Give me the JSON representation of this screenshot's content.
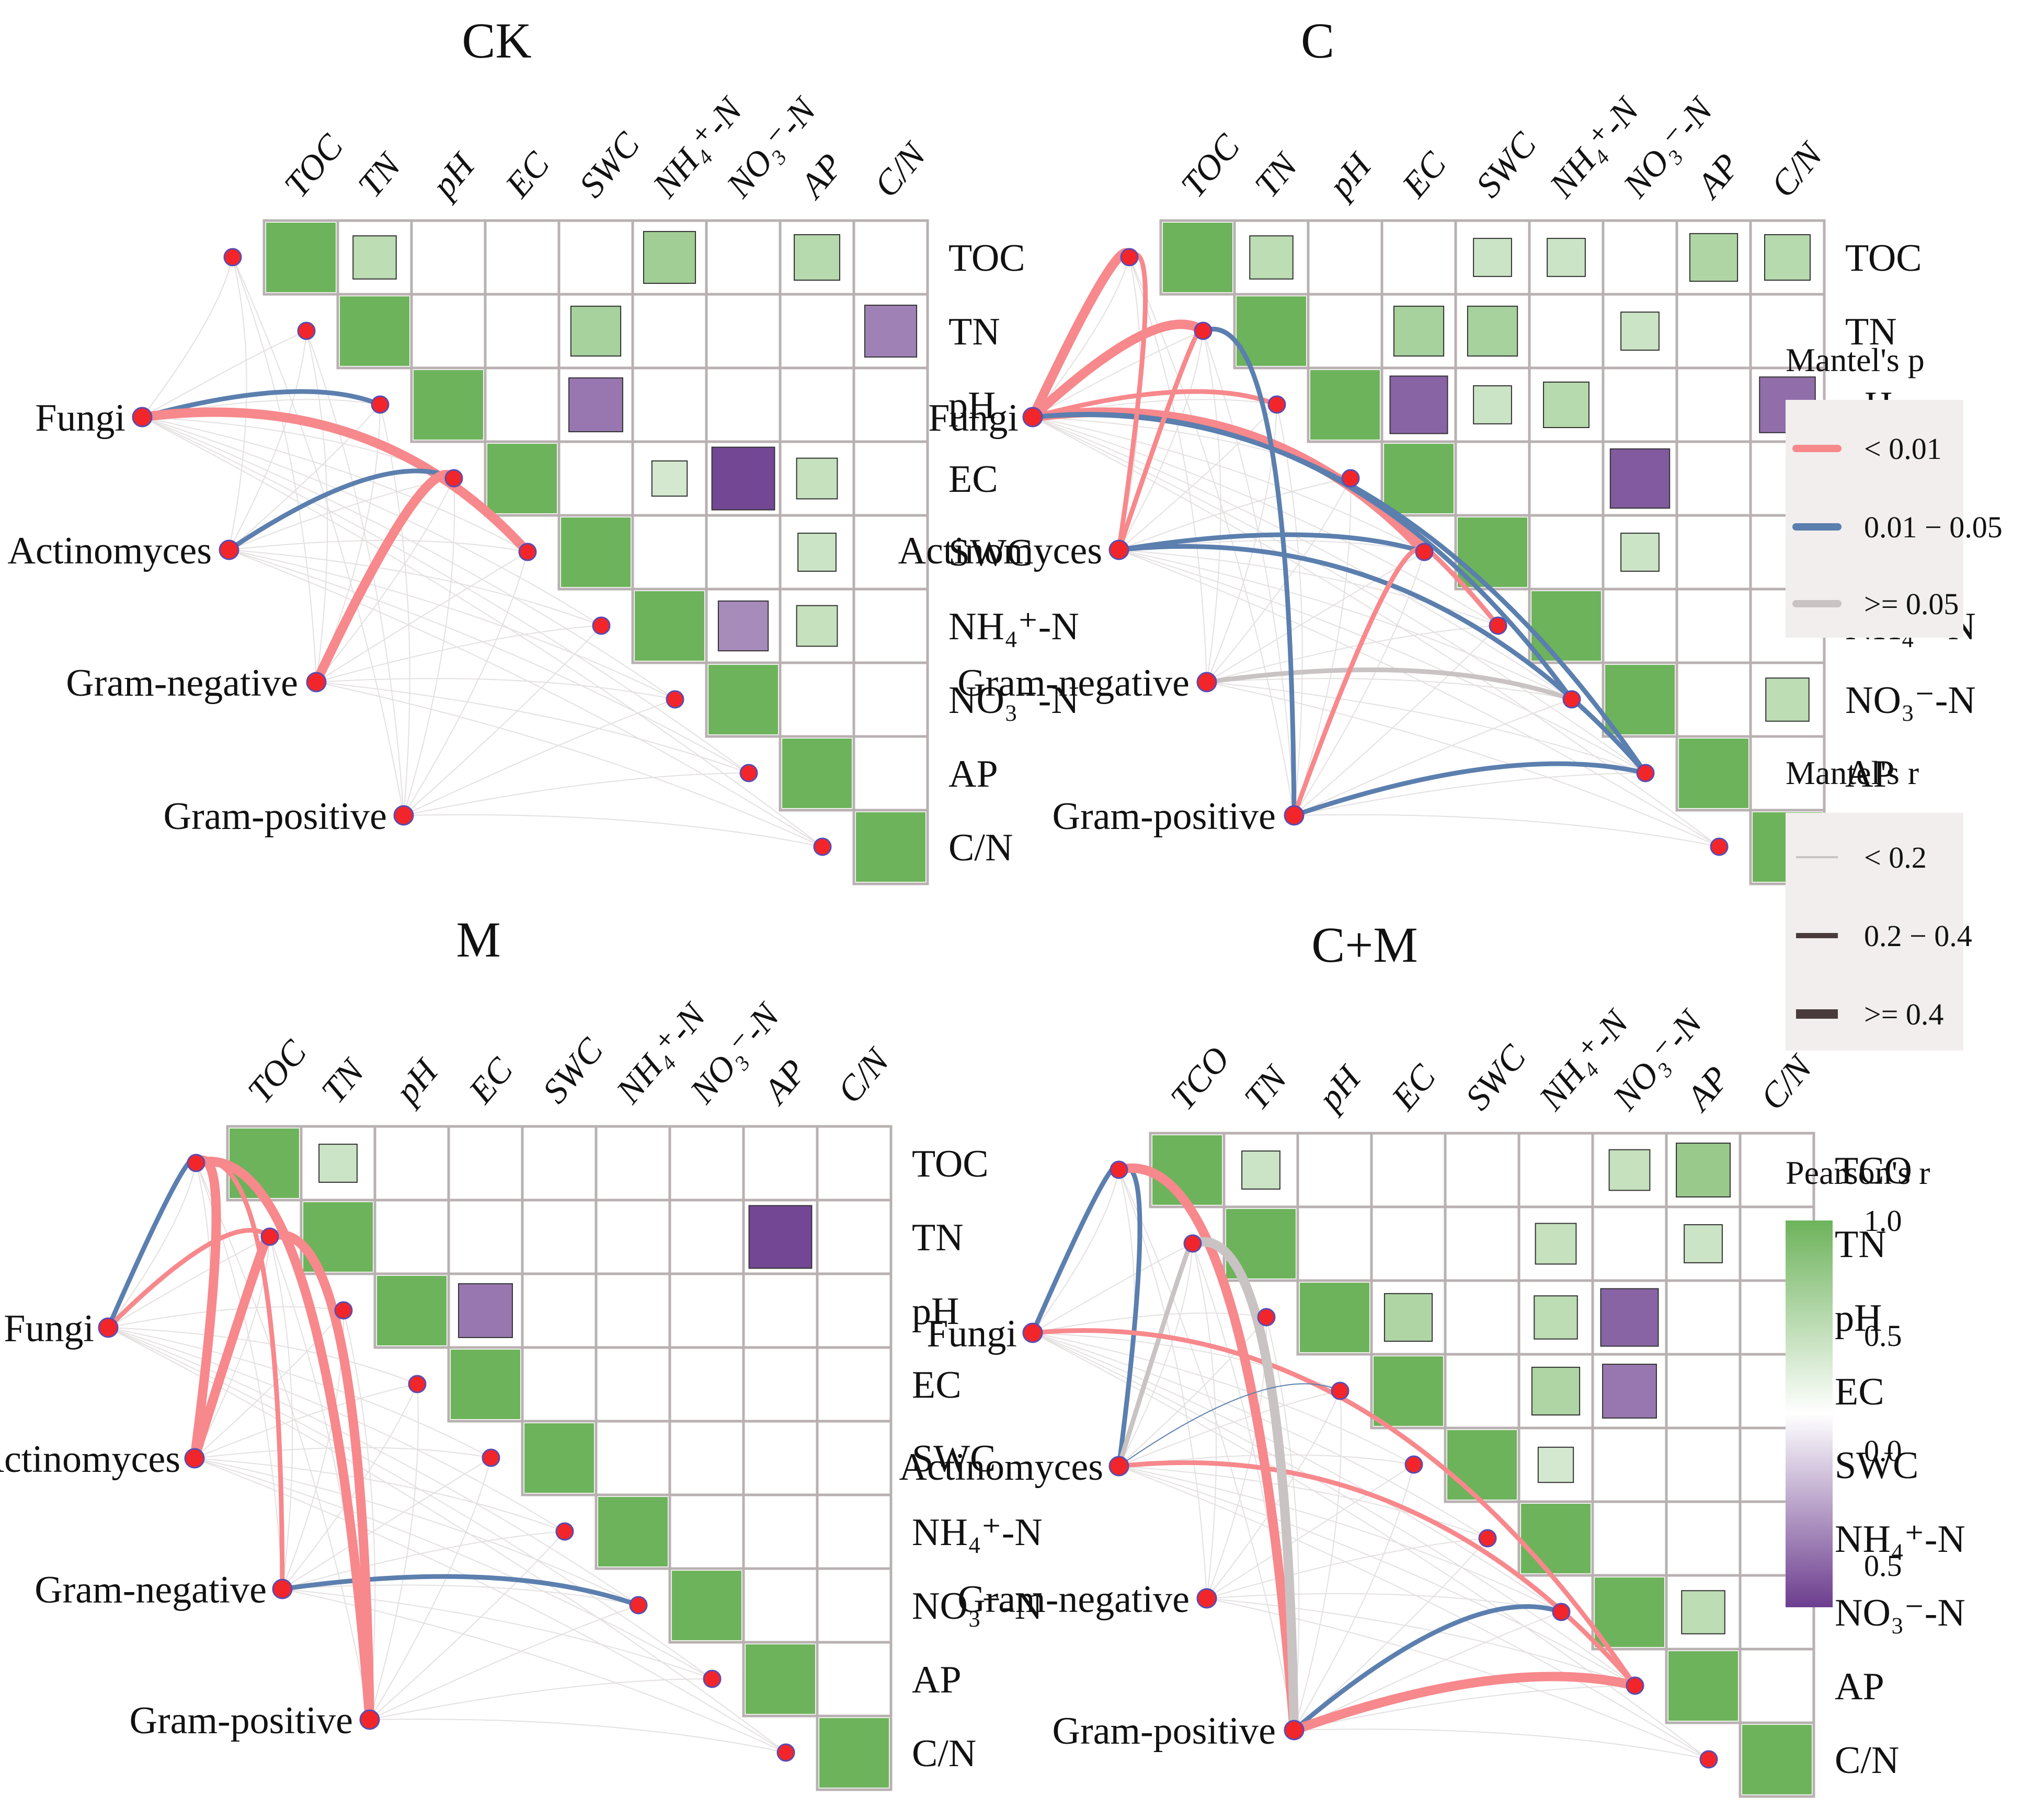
{
  "chart_data": {
    "type": "heatmap",
    "description_free": true,
    "legend": {
      "mantel_p": {
        "title": "Mantel's p",
        "items": [
          {
            "label": "< 0.01",
            "color": "#F7888C"
          },
          {
            "label": "0.01 − 0.05",
            "color": "#5B7FAE"
          },
          {
            "label": ">= 0.05",
            "color": "#C9C3C3"
          }
        ]
      },
      "mantel_r": {
        "title": "Mantel's r",
        "items": [
          {
            "label": "< 0.2",
            "weight": 0.15
          },
          {
            "label": "0.2 − 0.4",
            "weight": 0.5
          },
          {
            "label": ">= 0.4",
            "weight": 0.9
          }
        ]
      },
      "pearson_r": {
        "title": "Pearson's r",
        "ticks": [
          "1.0",
          "0.5",
          "0.0",
          "0.5"
        ],
        "color_high": "#6DB35B",
        "color_mid": "#FFFFFF",
        "color_low": "#6C3D8E"
      }
    },
    "group_labels": [
      "Fungi",
      "Actinomyces",
      "Gram-negative",
      "Gram-positive"
    ],
    "panels": [
      {
        "title": "CK",
        "col_labels": [
          "TOC",
          "TN",
          "pH",
          "EC",
          "SWC",
          "NH₄⁺-N",
          "NO₃⁻-N",
          "AP",
          "C/N"
        ],
        "row_labels": [
          "TOC",
          "TN",
          "pH",
          "EC",
          "SWC",
          "NH₄⁺-N",
          "NO₃⁻-N",
          "AP",
          "C/N"
        ],
        "cells": [
          [
            0,
            1,
            0.45
          ],
          [
            0,
            5,
            0.65
          ],
          [
            0,
            7,
            0.5
          ],
          [
            1,
            4,
            0.6
          ],
          [
            1,
            8,
            -0.65
          ],
          [
            2,
            4,
            -0.7
          ],
          [
            3,
            5,
            0.3
          ],
          [
            3,
            6,
            -0.95
          ],
          [
            3,
            7,
            0.4
          ],
          [
            4,
            7,
            0.35
          ],
          [
            5,
            6,
            -0.6
          ],
          [
            5,
            7,
            0.4
          ]
        ],
        "links": [
          [
            0,
            2,
            1,
            0.5
          ],
          [
            0,
            4,
            0,
            0.9
          ],
          [
            1,
            3,
            1,
            0.5
          ],
          [
            2,
            3,
            0,
            0.9
          ],
          [
            2,
            5,
            3,
            0.1
          ]
        ]
      },
      {
        "title": "C",
        "col_labels": [
          "TOC",
          "TN",
          "pH",
          "EC",
          "SWC",
          "NH₄⁺-N",
          "NO₃⁻-N",
          "AP",
          "C/N"
        ],
        "row_labels": [
          "TOC",
          "TN",
          "pH",
          "EC",
          "SWC",
          "NH₄⁺-N",
          "NO₃⁻-N",
          "AP",
          "C/N"
        ],
        "cells": [
          [
            0,
            1,
            0.45
          ],
          [
            0,
            4,
            0.35
          ],
          [
            0,
            5,
            0.35
          ],
          [
            0,
            7,
            0.55
          ],
          [
            0,
            8,
            0.5
          ],
          [
            1,
            3,
            0.6
          ],
          [
            1,
            4,
            0.6
          ],
          [
            1,
            6,
            0.35
          ],
          [
            2,
            3,
            -0.8
          ],
          [
            2,
            4,
            0.35
          ],
          [
            2,
            5,
            0.5
          ],
          [
            2,
            8,
            -0.75
          ],
          [
            3,
            6,
            -0.85
          ],
          [
            4,
            4,
            0.5
          ],
          [
            4,
            6,
            0.35
          ],
          [
            6,
            8,
            0.45
          ]
        ],
        "links": [
          [
            0,
            0,
            0,
            0.9
          ],
          [
            0,
            1,
            0,
            0.9
          ],
          [
            0,
            2,
            0,
            0.5
          ],
          [
            0,
            4,
            0,
            0.9
          ],
          [
            0,
            5,
            0,
            0.5
          ],
          [
            0,
            6,
            1,
            0.5
          ],
          [
            0,
            7,
            1,
            0.5
          ],
          [
            1,
            0,
            0,
            0.5
          ],
          [
            1,
            1,
            0,
            0.5
          ],
          [
            1,
            4,
            1,
            0.5
          ],
          [
            1,
            7,
            1,
            0.5
          ],
          [
            2,
            6,
            2,
            0.5
          ],
          [
            3,
            1,
            1,
            0.5
          ],
          [
            3,
            4,
            0,
            0.5
          ],
          [
            3,
            7,
            1,
            0.5
          ]
        ]
      },
      {
        "title": "M",
        "col_labels": [
          "TOC",
          "TN",
          "pH",
          "EC",
          "SWC",
          "NH₄⁺-N",
          "NO₃⁻-N",
          "AP",
          "C/N"
        ],
        "row_labels": [
          "TOC",
          "TN",
          "pH",
          "EC",
          "SWC",
          "NH₄⁺-N",
          "NO₃⁻-N",
          "AP",
          "C/N"
        ],
        "cells": [
          [
            0,
            1,
            0.35
          ],
          [
            1,
            7,
            -0.95
          ],
          [
            2,
            3,
            -0.7
          ],
          [
            4,
            4,
            0.35
          ],
          [
            7,
            7,
            -0.55
          ]
        ],
        "links": [
          [
            0,
            0,
            1,
            0.5
          ],
          [
            0,
            1,
            0,
            0.5
          ],
          [
            1,
            0,
            0,
            0.9
          ],
          [
            1,
            1,
            0,
            0.9
          ],
          [
            2,
            0,
            0,
            0.5
          ],
          [
            2,
            6,
            1,
            0.5
          ],
          [
            3,
            0,
            0,
            0.9
          ],
          [
            3,
            1,
            0,
            0.9
          ]
        ]
      },
      {
        "title": "C+M",
        "col_labels": [
          "TCO",
          "TN",
          "pH",
          "EC",
          "SWC",
          "NH₄⁺-N",
          "NO₃⁻-N",
          "AP",
          "C/N"
        ],
        "row_labels": [
          "TCO",
          "TN",
          "pH",
          "EC",
          "SWC",
          "NH₄⁺-N",
          "NO₃⁻-N",
          "AP",
          "C/N"
        ],
        "cells": [
          [
            0,
            1,
            0.35
          ],
          [
            0,
            6,
            0.4
          ],
          [
            0,
            7,
            0.7
          ],
          [
            1,
            5,
            0.4
          ],
          [
            1,
            7,
            0.35
          ],
          [
            2,
            3,
            0.55
          ],
          [
            2,
            5,
            0.45
          ],
          [
            2,
            6,
            -0.8
          ],
          [
            3,
            5,
            0.55
          ],
          [
            3,
            6,
            -0.7
          ],
          [
            4,
            5,
            0.3
          ],
          [
            6,
            7,
            0.45
          ]
        ],
        "links": [
          [
            0,
            0,
            1,
            0.5
          ],
          [
            1,
            0,
            1,
            0.5
          ],
          [
            1,
            1,
            2,
            0.5
          ],
          [
            0,
            7,
            0,
            0.5
          ],
          [
            1,
            7,
            0,
            0.5
          ],
          [
            3,
            0,
            0,
            0.9
          ],
          [
            3,
            1,
            2,
            0.9
          ],
          [
            3,
            6,
            1,
            0.5
          ],
          [
            3,
            7,
            0,
            0.9
          ],
          [
            1,
            3,
            1,
            0.1
          ]
        ]
      }
    ]
  }
}
